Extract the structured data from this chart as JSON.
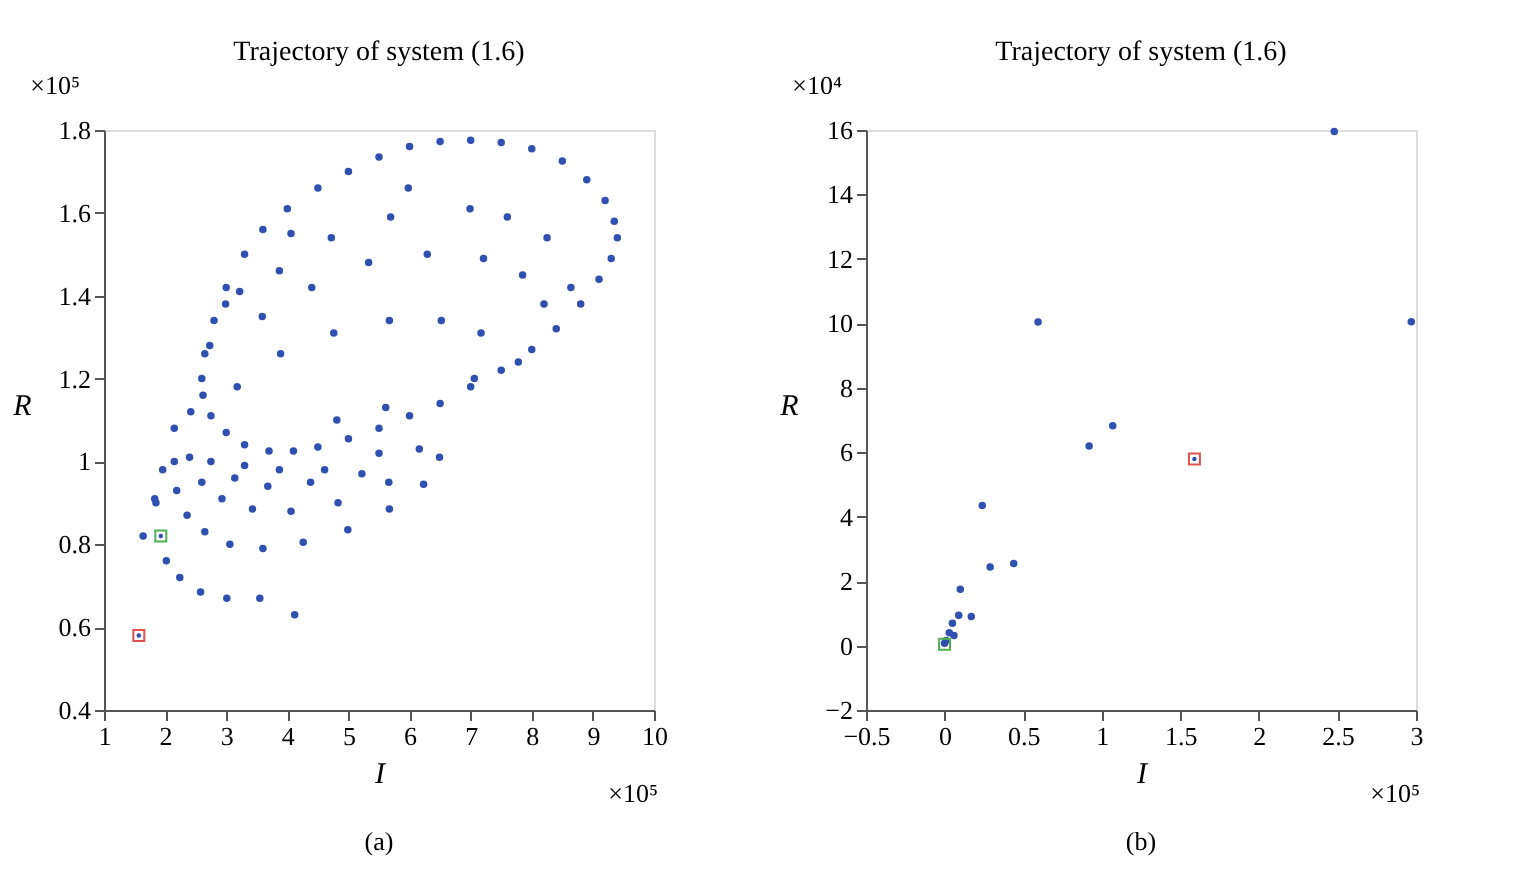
{
  "chart_data": [
    {
      "type": "scatter",
      "title": "Trajectory of system (1.6)",
      "xlabel": "I",
      "ylabel": "R",
      "xlim": [
        1,
        10
      ],
      "xticks": [
        1,
        2,
        3,
        4,
        5,
        6,
        7,
        8,
        9,
        10
      ],
      "ylim": [
        0.4,
        1.8
      ],
      "yticks": [
        0.4,
        0.6,
        0.8,
        1,
        1.2,
        1.4,
        1.6,
        1.8
      ],
      "grid": false,
      "legend": false,
      "annotations": [
        "×10⁵",
        "×10⁵",
        "(a)"
      ],
      "series": [
        {
          "color": "#3050b0",
          "marker": "circle",
          "x": [
            2.6,
            2.65,
            2.8,
            3.0,
            3.3,
            3.6,
            4.0,
            4.5,
            5.0,
            5.5,
            6.0,
            6.5,
            7.0,
            7.5,
            8.0,
            8.5,
            8.9,
            9.2,
            9.35,
            9.4,
            9.3,
            9.1,
            8.8,
            8.4,
            8.0,
            7.5,
            7.0,
            6.5,
            6.0,
            5.5,
            5.0,
            4.5,
            4.1,
            3.7,
            3.3,
            3.0,
            2.75,
            2.62,
            6.99,
            5.98,
            5.69,
            4.72,
            6.29,
            5.33,
            4.4,
            7.21,
            7.85,
            8.25,
            7.6,
            5.67,
            6.52,
            7.17,
            4.76,
            3.59,
            3.89,
            2.99,
            3.18,
            4.81,
            5.61,
            8.2,
            8.64,
            7.78,
            7.06,
            2.73,
            3.87,
            4.06,
            3.22,
            1.64,
            1.83,
            1.85,
            2.02,
            2.24,
            2.58,
            3.01,
            3.55,
            4.12,
            2.65,
            3.06,
            3.6,
            4.26,
            4.99,
            2.36,
            2.93,
            3.43,
            4.06,
            4.83,
            5.67,
            2.19,
            2.6,
            3.14,
            3.68,
            4.38,
            5.22,
            5.66,
            6.23,
            1.96,
            2.15,
            2.4,
            2.75,
            3.3,
            3.87,
            4.61,
            5.5,
            6.16,
            6.49,
            2.15,
            2.42
          ],
          "values": [
            1.2,
            1.26,
            1.34,
            1.42,
            1.5,
            1.56,
            1.61,
            1.66,
            1.7,
            1.735,
            1.76,
            1.772,
            1.775,
            1.77,
            1.755,
            1.725,
            1.68,
            1.63,
            1.58,
            1.54,
            1.49,
            1.44,
            1.38,
            1.32,
            1.27,
            1.22,
            1.18,
            1.14,
            1.11,
            1.08,
            1.055,
            1.035,
            1.025,
            1.025,
            1.04,
            1.07,
            1.11,
            1.16,
            1.61,
            1.66,
            1.59,
            1.54,
            1.5,
            1.48,
            1.42,
            1.49,
            1.45,
            1.54,
            1.59,
            1.34,
            1.34,
            1.31,
            1.31,
            1.35,
            1.26,
            1.38,
            1.18,
            1.1,
            1.13,
            1.38,
            1.42,
            1.24,
            1.2,
            1.28,
            1.46,
            1.55,
            1.41,
            0.82,
            0.91,
            0.9,
            0.76,
            0.72,
            0.685,
            0.67,
            0.67,
            0.63,
            0.83,
            0.8,
            0.79,
            0.805,
            0.835,
            0.87,
            0.91,
            0.885,
            0.88,
            0.9,
            0.885,
            0.93,
            0.95,
            0.96,
            0.94,
            0.95,
            0.97,
            0.95,
            0.945,
            0.98,
            1.0,
            1.01,
            1.0,
            0.99,
            0.98,
            0.98,
            1.02,
            1.03,
            1.01,
            1.08,
            1.12
          ]
        },
        {
          "color": "#e05050",
          "marker": "square",
          "x": [
            1.57
          ],
          "values": [
            0.58
          ]
        },
        {
          "color": "#50b050",
          "marker": "square",
          "x": [
            1.93
          ],
          "values": [
            0.82
          ]
        }
      ]
    },
    {
      "type": "scatter",
      "title": "Trajectory of system (1.6)",
      "xlabel": "I",
      "ylabel": "R",
      "xlim": [
        -0.5,
        3
      ],
      "xticks": [
        -0.5,
        0,
        0.5,
        1,
        1.5,
        2,
        2.5,
        3
      ],
      "ylim": [
        -2,
        16
      ],
      "yticks": [
        -2,
        0,
        2,
        4,
        6,
        8,
        10,
        12,
        14,
        16
      ],
      "grid": false,
      "legend": false,
      "annotations": [
        "×10⁵",
        "×10⁴",
        "(b)"
      ],
      "series": [
        {
          "color": "#3050b0",
          "marker": "circle",
          "x": [
            2.48,
            2.97,
            0.595,
            0.92,
            1.07,
            0.24,
            0.29,
            0.44,
            0.1,
            0.09,
            0.17,
            0.05,
            0.06,
            0.03,
            0.0,
            0.01
          ],
          "values": [
            15.95,
            10.05,
            10.04,
            6.19,
            6.82,
            4.35,
            2.44,
            2.55,
            1.75,
            0.94,
            0.9,
            0.69,
            0.31,
            0.4,
            0.07,
            0.16
          ]
        },
        {
          "color": "#e05050",
          "marker": "square",
          "x": [
            1.59
          ],
          "values": [
            5.79
          ]
        },
        {
          "color": "#50b050",
          "marker": "square",
          "x": [
            0.0
          ],
          "values": [
            0.04
          ]
        }
      ]
    }
  ]
}
